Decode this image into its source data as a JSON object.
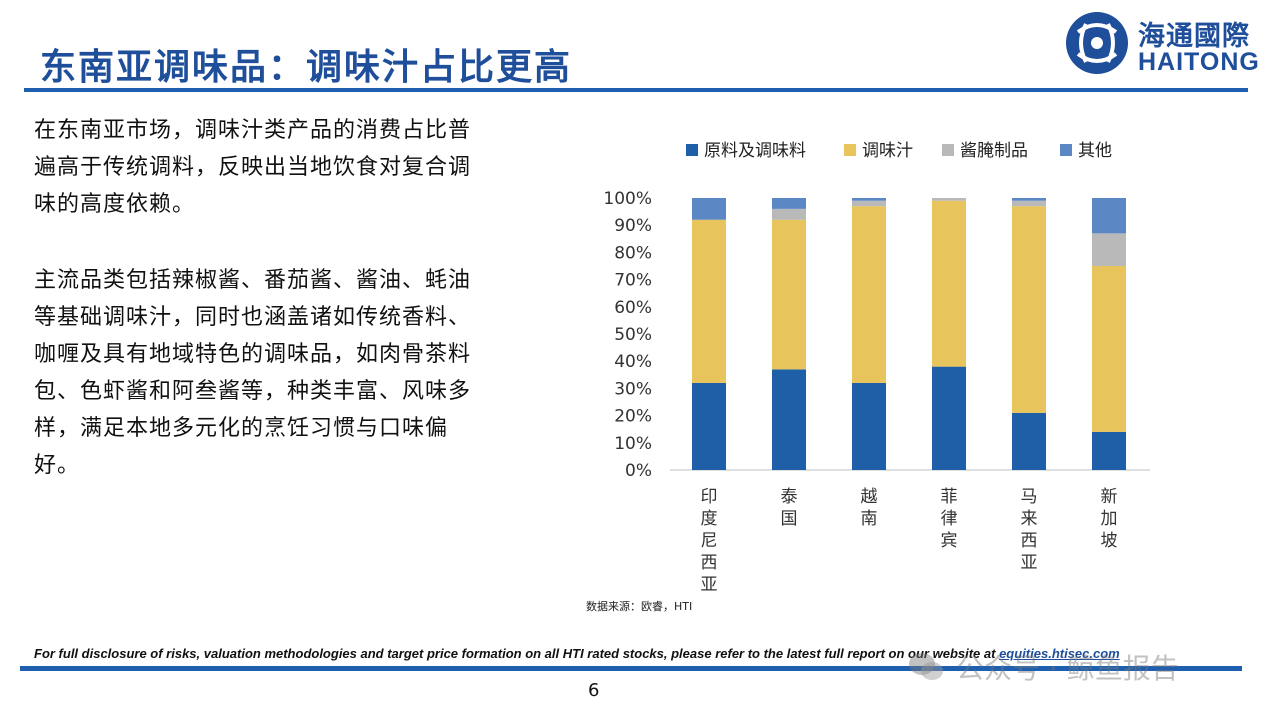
{
  "slide": {
    "title": "东南亚调味品：调味汁占比更高",
    "page_number": "6",
    "source_note": "数据来源：欧睿，HTI",
    "disclaimer_text": "For full disclosure of risks, valuation methodologies and target price formation on all HTI rated stocks, please refer to the latest full report on our website at ",
    "disclaimer_link": "equities.htisec.com",
    "watermark": "公众号 · 鲸鱼报告"
  },
  "logo": {
    "cn": "海通國際",
    "en": "HAITONG"
  },
  "body": {
    "paragraph_1": "在东南亚市场，调味汁类产品的消费占比普遍高于传统调料，反映出当地饮食对复合调味的高度依赖。",
    "paragraph_2": "主流品类包括辣椒酱、番茄酱、酱油、蚝油等基础调味汁，同时也涵盖诸如传统香料、咖喱及具有地域特色的调味品，如肉骨茶料包、色虾酱和阿叁酱等，种类丰富、风味多样，满足本地多元化的烹饪习惯与口味偏好。"
  },
  "colors": {
    "brand_blue": "#1f4e9b",
    "series": [
      "#1f5fa8",
      "#e8c45c",
      "#b9b9b9",
      "#5b87c5"
    ]
  },
  "chart_data": {
    "type": "bar",
    "stacked": true,
    "categories": [
      "印度尼西亚",
      "泰国",
      "越南",
      "菲律宾",
      "马来西亚",
      "新加坡"
    ],
    "series": [
      {
        "name": "原料及调味料",
        "values": [
          32,
          37,
          32,
          38,
          21,
          14
        ]
      },
      {
        "name": "调味汁",
        "values": [
          60,
          55,
          65,
          61,
          76,
          61
        ]
      },
      {
        "name": "酱腌制品",
        "values": [
          0,
          4,
          2,
          1,
          2,
          12
        ]
      },
      {
        "name": "其他",
        "values": [
          8,
          4,
          1,
          0,
          1,
          13
        ]
      }
    ],
    "ylim": [
      0,
      100
    ],
    "yticks": [
      "0%",
      "10%",
      "20%",
      "30%",
      "40%",
      "50%",
      "60%",
      "70%",
      "80%",
      "90%",
      "100%"
    ],
    "legend_position": "top",
    "grid": false
  }
}
